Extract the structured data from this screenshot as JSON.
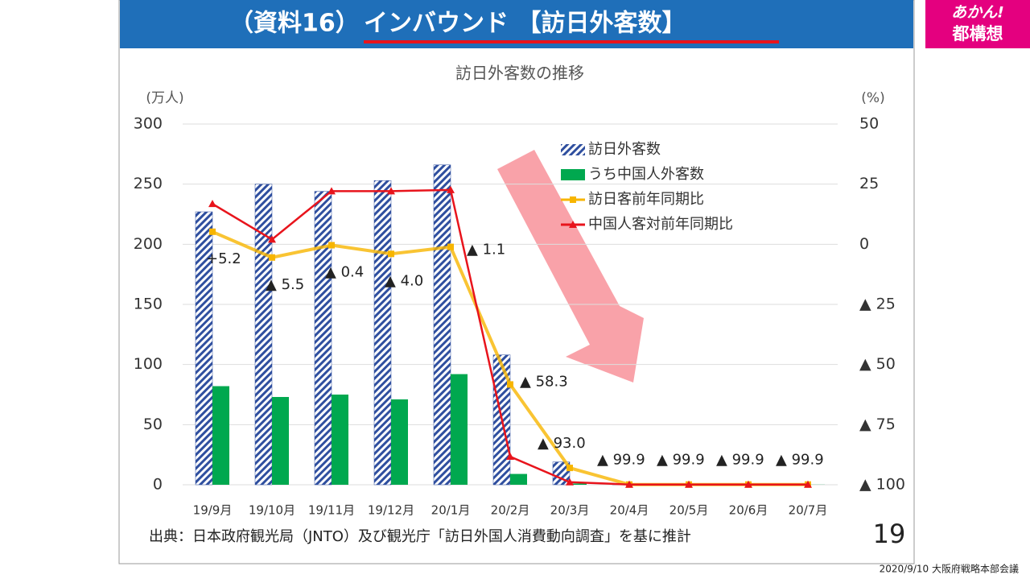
{
  "header": {
    "title_prefix": "（資料16）",
    "title_main": "インバウンド 【訪日外客数】"
  },
  "badge": {
    "line1": "あかん!",
    "line2": "都構想"
  },
  "footer": {
    "source": "出典：日本政府観光局（JNTO）及び観光庁「訪日外国人消費動向調査」を基に推計",
    "page": "19",
    "meeting": "2020/9/10 大阪府戦略本部会議"
  },
  "chart_data": {
    "type": "bar",
    "title": "訪日外客数の推移",
    "ylabel": "(万人)",
    "y2label": "(%)",
    "categories": [
      "19/9月",
      "19/10月",
      "19/11月",
      "19/12月",
      "20/1月",
      "20/2月",
      "20/3月",
      "20/4月",
      "20/5月",
      "20/6月",
      "20/7月"
    ],
    "ylim": [
      0,
      300
    ],
    "yticks": [
      0,
      50,
      100,
      150,
      200,
      250,
      300
    ],
    "y2lim": [
      -100,
      50
    ],
    "y2ticks": [
      {
        "value": -100,
        "label": "▲ 100"
      },
      {
        "value": -75,
        "label": "▲ 75"
      },
      {
        "value": -50,
        "label": "▲ 50"
      },
      {
        "value": -25,
        "label": "▲ 25"
      },
      0,
      25,
      50
    ],
    "grid": true,
    "series": [
      {
        "name": "訪日外客数",
        "type": "bar",
        "color": "#2f4f9f",
        "pattern": "hatch",
        "values": [
          227,
          250,
          244,
          253,
          266,
          108,
          19,
          0.3,
          0.2,
          0.3,
          0.4
        ]
      },
      {
        "name": "うち中国人外客数",
        "type": "bar",
        "color": "#00a84f",
        "values": [
          82,
          73,
          75,
          71,
          92,
          9,
          1,
          0.1,
          0.1,
          0.1,
          0.1
        ]
      },
      {
        "name": "訪日客前年同期比",
        "type": "line",
        "axis": "y2",
        "color": "#f7b500",
        "marker": "square",
        "values": [
          5.2,
          -5.5,
          -0.4,
          -4.0,
          -1.1,
          -58.3,
          -93.0,
          -99.9,
          -99.9,
          -99.9,
          -99.9
        ],
        "value_labels": [
          "+5.2",
          "▲ 5.5",
          "▲ 0.4",
          "▲ 4.0",
          "▲ 1.1",
          "▲ 58.3",
          "▲ 93.0",
          "▲ 99.9",
          "▲ 99.9",
          "▲ 99.9",
          "▲ 99.9"
        ]
      },
      {
        "name": "中国人客対前年同期比",
        "type": "line",
        "axis": "y2",
        "color": "#e8141c",
        "marker": "triangle",
        "values": [
          16.8,
          2.0,
          22.1,
          22.1,
          22.6,
          -88.3,
          -98.9,
          -99.9,
          -99.9,
          -99.9,
          -99.9
        ]
      }
    ]
  }
}
